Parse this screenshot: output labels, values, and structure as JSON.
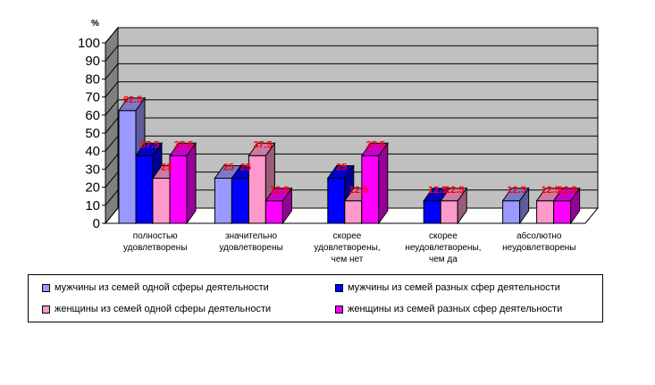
{
  "chart_data": {
    "type": "bar",
    "unit_label": "%",
    "categories": [
      [
        "полностью",
        "удовлетворены"
      ],
      [
        "значительно",
        "удовлетворены"
      ],
      [
        "скорее",
        "удовлетворены,",
        "чем нет"
      ],
      [
        "скорее",
        "неудовлетворены,",
        "чем да"
      ],
      [
        "абсолютно",
        "неудовлетворены"
      ]
    ],
    "series": [
      {
        "name": "мужчины из семей одной сферы деятельности",
        "color": "#9999ff",
        "values": [
          62.5,
          25,
          null,
          null,
          12.5
        ]
      },
      {
        "name": "мужчины из семей разных сфер деятельности",
        "color": "#0000ff",
        "values": [
          37.5,
          25,
          25,
          12.5,
          null
        ]
      },
      {
        "name": "женщины из семей одной сферы деятельности",
        "color": "#ff99cc",
        "values": [
          25,
          37.5,
          12.5,
          12.5,
          12.5
        ]
      },
      {
        "name": "женщины из семей разных сфер деятельности",
        "color": "#ff00ff",
        "values": [
          37.5,
          12.5,
          37.5,
          null,
          12.5
        ]
      }
    ],
    "data_labels": [
      [
        "62.5",
        "37.5",
        "25",
        "37.5"
      ],
      [
        "25",
        "25",
        "37.5",
        "12.5"
      ],
      [
        null,
        "25",
        "12.5",
        "37.5"
      ],
      [
        null,
        "12.5",
        "12.5",
        null
      ],
      [
        "12.5",
        null,
        "12.5",
        "12.5"
      ]
    ],
    "y_ticks": [
      "0",
      "10",
      "20",
      "30",
      "40",
      "50",
      "60",
      "70",
      "80",
      "90",
      "100"
    ],
    "ylim": [
      0,
      100
    ],
    "grid": true,
    "legend_position": "bottom"
  }
}
